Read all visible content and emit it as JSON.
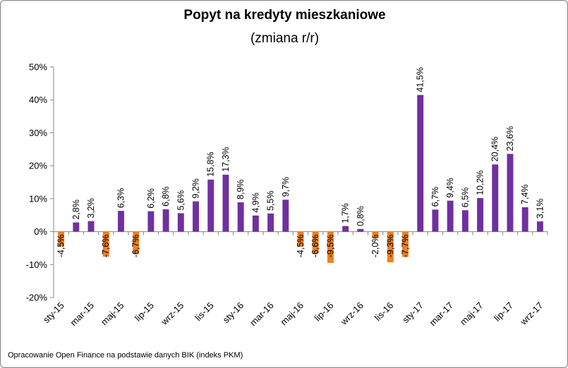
{
  "chart_data": {
    "type": "bar",
    "title": "Popyt na kredyty mieszkaniowe",
    "subtitle": "(zmiana r/r)",
    "source": "Opracowanie Open Finance na podstawie danych BIK (indeks PKM)",
    "xlabel": "",
    "ylabel": "",
    "ylim": [
      -20,
      50
    ],
    "ytick_values": [
      -20,
      -10,
      0,
      10,
      20,
      30,
      40,
      50
    ],
    "ytick_labels": [
      "-20%",
      "-10%",
      "0%",
      "10%",
      "20%",
      "30%",
      "40%",
      "50%"
    ],
    "grid": false,
    "legend": "none",
    "positive_color": "#7030A0",
    "negative_color": "#F07F1E",
    "categories": [
      "sty-15",
      "lut-15",
      "mar-15",
      "kwi-15",
      "maj-15",
      "cze-15",
      "lip-15",
      "sie-15",
      "wrz-15",
      "paź-15",
      "lis-15",
      "gru-15",
      "sty-16",
      "lut-16",
      "mar-16",
      "kwi-16",
      "maj-16",
      "cze-16",
      "lip-16",
      "sie-16",
      "wrz-16",
      "paź-16",
      "lis-16",
      "gru-16",
      "sty-17",
      "lut-17",
      "mar-17",
      "kwi-17",
      "maj-17",
      "cze-17",
      "lip-17",
      "sie-17",
      "wrz-17"
    ],
    "xtick_labels": [
      "sty-15",
      "",
      "mar-15",
      "",
      "maj-15",
      "",
      "lip-15",
      "",
      "wrz-15",
      "",
      "lis-15",
      "",
      "sty-16",
      "",
      "mar-16",
      "",
      "maj-16",
      "",
      "lip-16",
      "",
      "wrz-16",
      "",
      "lis-16",
      "",
      "sty-17",
      "",
      "mar-17",
      "",
      "maj-17",
      "",
      "lip-17",
      "",
      "wrz-17"
    ],
    "values": [
      -4.5,
      2.8,
      3.2,
      -7.6,
      6.3,
      -6.7,
      6.2,
      6.8,
      5.6,
      9.2,
      15.8,
      17.3,
      8.9,
      4.9,
      5.5,
      9.7,
      -4.5,
      -6.6,
      -9.5,
      1.7,
      0.8,
      -2.0,
      -9.3,
      -7.7,
      41.5,
      6.7,
      9.4,
      6.5,
      10.2,
      20.4,
      23.6,
      7.4,
      3.1
    ],
    "data_labels": [
      "-4,5%",
      "2,8%",
      "3,2%",
      "-7,6%",
      "6,3%",
      "-6,7%",
      "6,2%",
      "6,8%",
      "5,6%",
      "9,2%",
      "15,8%",
      "17,3%",
      "8,9%",
      "4,9%",
      "5,5%",
      "9,7%",
      "-4,5%",
      "-6,6%",
      "-9,5%",
      "1,7%",
      "0,8%",
      "-2,0%",
      "-9,3%",
      "-7,7%",
      "41,5%",
      "6,7%",
      "9,4%",
      "6,5%",
      "10,2%",
      "20,4%",
      "23,6%",
      "7,4%",
      "3,1%"
    ]
  }
}
